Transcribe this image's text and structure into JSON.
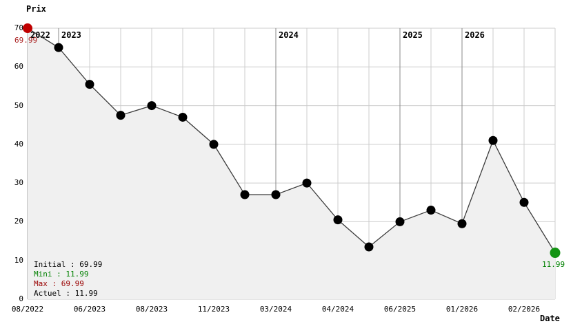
{
  "chart_data": {
    "type": "line",
    "title": "Prix",
    "xlabel": "Date",
    "ylabel": "Prix",
    "ylim": [
      0,
      70
    ],
    "y_ticks": [
      0,
      10,
      20,
      30,
      40,
      50,
      60,
      70
    ],
    "grid": true,
    "points": [
      {
        "value": 69.99,
        "date": "08/2022"
      },
      {
        "value": 65
      },
      {
        "value": 55.5,
        "date": "06/2023"
      },
      {
        "value": 47.5
      },
      {
        "value": 50,
        "date": "08/2023"
      },
      {
        "value": 47
      },
      {
        "value": 40,
        "date": "11/2023"
      },
      {
        "value": 27
      },
      {
        "value": 27,
        "date": "03/2024"
      },
      {
        "value": 30
      },
      {
        "value": 20.5,
        "date": "04/2024"
      },
      {
        "value": 13.5
      },
      {
        "value": 20,
        "date": "06/2025"
      },
      {
        "value": 23
      },
      {
        "value": 19.5,
        "date": "01/2026"
      },
      {
        "value": 41
      },
      {
        "value": 25,
        "date": "02/2026"
      },
      {
        "value": 11.99
      }
    ],
    "year_markers": [
      {
        "index": 0,
        "label": "2022"
      },
      {
        "index": 1,
        "label": "2023"
      },
      {
        "index": 8,
        "label": "2024"
      },
      {
        "index": 12,
        "label": "2025"
      },
      {
        "index": 14,
        "label": "2026"
      }
    ],
    "point_labels": {
      "start": {
        "text": "69.99",
        "color": "#aa2222"
      },
      "end": {
        "text": "11.99",
        "color": "#008000"
      }
    },
    "legend": {
      "position": "bottom-left",
      "items": [
        {
          "text": "Initial : 69.99",
          "color": "#000000"
        },
        {
          "text": "Mini : 11.99",
          "color": "#008000"
        },
        {
          "text": "Max : 69.99",
          "color": "#990000"
        },
        {
          "text": "Actuel : 11.99",
          "color": "#000000"
        }
      ]
    },
    "colors": {
      "line": "#3c3c3c",
      "marker": "#000000",
      "first_marker": "#c00000",
      "last_marker": "#149414",
      "area_fill": "#f0f0f0",
      "gridline": "#cccccc",
      "year_gridline": "#888888",
      "text": "#000000"
    }
  }
}
